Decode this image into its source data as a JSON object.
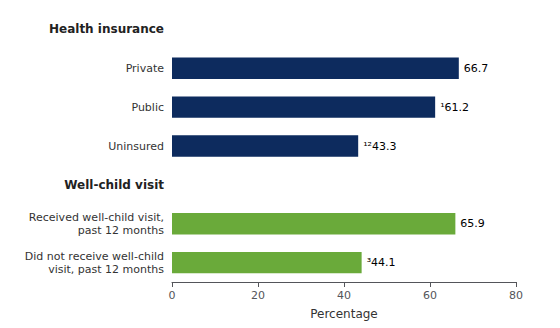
{
  "chart_data": {
    "type": "bar",
    "orientation": "horizontal",
    "categories": [
      "Did not receive well-child\nvisit, past 12 months",
      "Received well-child visit,\npast 12 months",
      "Well-child visit",
      "Uninsured",
      "Public",
      "Private",
      "Health insurance"
    ],
    "values": [
      44.1,
      65.9,
      null,
      43.3,
      61.2,
      66.7,
      null
    ],
    "value_labels": [
      "³44.1",
      "65.9",
      null,
      "¹²43.3",
      "¹61.2",
      "66.7",
      null
    ],
    "data_labels": true,
    "colors": [
      "#6aaa3a",
      "#6aaa3a",
      null,
      "#0d2b5e",
      "#0d2b5e",
      "#0d2b5e",
      null
    ],
    "xlabel": "Percentage",
    "xlim": [
      0,
      80
    ],
    "xticks": [
      0,
      20,
      40,
      60,
      80
    ],
    "grid": false
  }
}
